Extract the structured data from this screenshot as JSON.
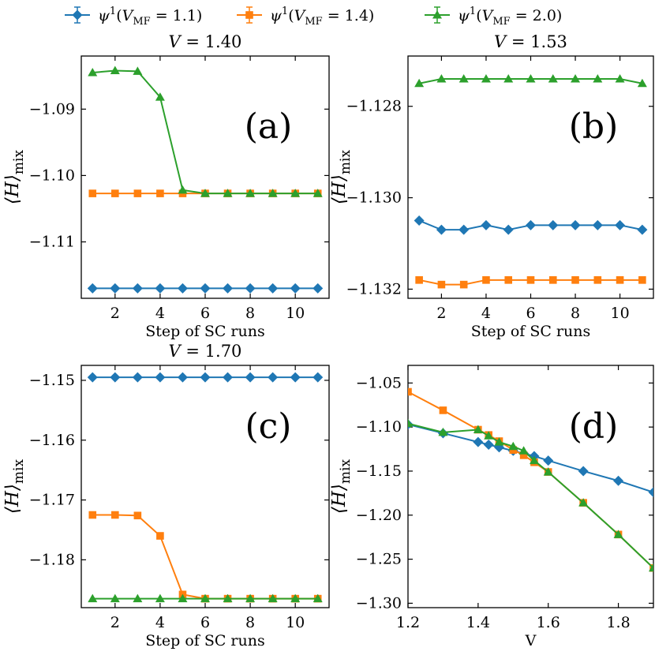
{
  "legend": {
    "placement": "top",
    "entries": [
      {
        "label": "ψ¹(V_MF = 1.1)",
        "color": "#1f77b4",
        "marker": "diamond"
      },
      {
        "label": "ψ¹(V_MF = 1.4)",
        "color": "#ff7f0e",
        "marker": "square"
      },
      {
        "label": "ψ¹(V_MF = 2.0)",
        "color": "#2ca02c",
        "marker": "triangle"
      }
    ]
  },
  "chart_data": [
    {
      "type": "line",
      "panel": "a",
      "letter": "(a)",
      "title": "V = 1.40",
      "xlabel": "Step of SC runs",
      "ylabel": "⟨H⟩mix",
      "xlim": [
        0.5,
        11.5
      ],
      "ylim": [
        -1.1185,
        -1.082
      ],
      "xticks": [
        2,
        4,
        6,
        8,
        10
      ],
      "yticks": [
        -1.09,
        -1.1,
        -1.11
      ],
      "x": [
        1,
        2,
        3,
        4,
        5,
        6,
        7,
        8,
        9,
        10,
        11
      ],
      "series": [
        {
          "color": "#1f77b4",
          "marker": "diamond",
          "values": [
            -1.117,
            -1.117,
            -1.117,
            -1.117,
            -1.117,
            -1.117,
            -1.117,
            -1.117,
            -1.117,
            -1.117,
            -1.117
          ]
        },
        {
          "color": "#ff7f0e",
          "marker": "square",
          "values": [
            -1.1027,
            -1.1027,
            -1.1027,
            -1.1027,
            -1.1027,
            -1.1027,
            -1.1027,
            -1.1027,
            -1.1027,
            -1.1027,
            -1.1027
          ]
        },
        {
          "color": "#2ca02c",
          "marker": "triangle",
          "values": [
            -1.0845,
            -1.0842,
            -1.0843,
            -1.0882,
            -1.1022,
            -1.1027,
            -1.1027,
            -1.1027,
            -1.1027,
            -1.1027,
            -1.1027
          ]
        }
      ]
    },
    {
      "type": "line",
      "panel": "b",
      "letter": "(b)",
      "title": "V = 1.53",
      "xlabel": "Step of SC runs",
      "ylabel": "⟨H⟩mix",
      "xlim": [
        0.5,
        11.5
      ],
      "ylim": [
        -1.1322,
        -1.1269
      ],
      "xticks": [
        2,
        4,
        6,
        8,
        10
      ],
      "yticks": [
        -1.128,
        -1.13,
        -1.132
      ],
      "x": [
        1,
        2,
        3,
        4,
        5,
        6,
        7,
        8,
        9,
        10,
        11
      ],
      "series": [
        {
          "color": "#1f77b4",
          "marker": "diamond",
          "values": [
            -1.1305,
            -1.1307,
            -1.1307,
            -1.1306,
            -1.1307,
            -1.1306,
            -1.1306,
            -1.1306,
            -1.1306,
            -1.1306,
            -1.1307
          ]
        },
        {
          "color": "#ff7f0e",
          "marker": "square",
          "values": [
            -1.1318,
            -1.1319,
            -1.1319,
            -1.1318,
            -1.1318,
            -1.1318,
            -1.1318,
            -1.1318,
            -1.1318,
            -1.1318,
            -1.1318
          ]
        },
        {
          "color": "#2ca02c",
          "marker": "triangle",
          "values": [
            -1.1275,
            -1.1274,
            -1.1274,
            -1.1274,
            -1.1274,
            -1.1274,
            -1.1274,
            -1.1274,
            -1.1274,
            -1.1274,
            -1.1275
          ]
        }
      ]
    },
    {
      "type": "line",
      "panel": "c",
      "letter": "(c)",
      "title": "V = 1.70",
      "xlabel": "Step of SC runs",
      "ylabel": "⟨H⟩mix",
      "xlim": [
        0.5,
        11.5
      ],
      "ylim": [
        -1.188,
        -1.1475
      ],
      "xticks": [
        2,
        4,
        6,
        8,
        10
      ],
      "yticks": [
        -1.15,
        -1.16,
        -1.17,
        -1.18
      ],
      "x": [
        1,
        2,
        3,
        4,
        5,
        6,
        7,
        8,
        9,
        10,
        11
      ],
      "series": [
        {
          "color": "#1f77b4",
          "marker": "diamond",
          "values": [
            -1.1495,
            -1.1495,
            -1.1495,
            -1.1495,
            -1.1495,
            -1.1495,
            -1.1495,
            -1.1495,
            -1.1495,
            -1.1495,
            -1.1495
          ]
        },
        {
          "color": "#ff7f0e",
          "marker": "square",
          "values": [
            -1.1725,
            -1.1725,
            -1.1726,
            -1.176,
            -1.1858,
            -1.1865,
            -1.1865,
            -1.1865,
            -1.1865,
            -1.1865,
            -1.1865
          ]
        },
        {
          "color": "#2ca02c",
          "marker": "triangle",
          "values": [
            -1.1865,
            -1.1865,
            -1.1865,
            -1.1865,
            -1.1865,
            -1.1865,
            -1.1865,
            -1.1865,
            -1.1865,
            -1.1865,
            -1.1865
          ]
        }
      ]
    },
    {
      "type": "line",
      "panel": "d",
      "letter": "(d)",
      "title": "",
      "xlabel": "V",
      "ylabel": "⟨H⟩mix",
      "xlim": [
        1.2,
        1.9
      ],
      "ylim": [
        -1.305,
        -1.03
      ],
      "xticks": [
        1.2,
        1.4,
        1.6,
        1.8
      ],
      "yticks": [
        -1.05,
        -1.1,
        -1.15,
        -1.2,
        -1.25,
        -1.3
      ],
      "x": [
        1.2,
        1.3,
        1.4,
        1.43,
        1.46,
        1.5,
        1.53,
        1.56,
        1.6,
        1.7,
        1.8,
        1.9
      ],
      "series": [
        {
          "color": "#1f77b4",
          "marker": "diamond",
          "values": [
            -1.097,
            -1.107,
            -1.117,
            -1.12,
            -1.123,
            -1.127,
            -1.13,
            -1.133,
            -1.138,
            -1.15,
            -1.161,
            -1.174
          ]
        },
        {
          "color": "#ff7f0e",
          "marker": "square",
          "values": [
            -1.06,
            -1.081,
            -1.103,
            -1.109,
            -1.116,
            -1.126,
            -1.132,
            -1.14,
            -1.151,
            -1.186,
            -1.222,
            -1.26
          ]
        },
        {
          "color": "#2ca02c",
          "marker": "triangle",
          "values": [
            -1.096,
            -1.106,
            -1.103,
            -1.11,
            -1.117,
            -1.122,
            -1.127,
            -1.138,
            -1.151,
            -1.186,
            -1.222,
            -1.26
          ]
        }
      ]
    }
  ]
}
